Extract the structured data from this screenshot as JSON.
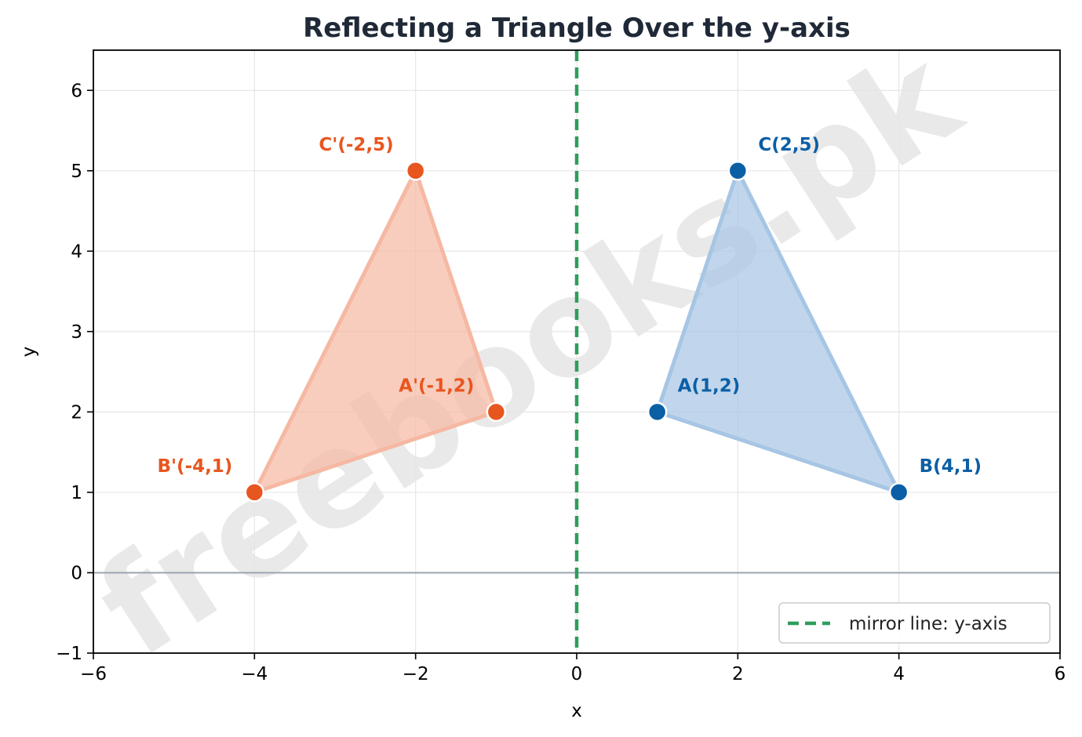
{
  "chart_data": {
    "type": "scatter",
    "title": "Reflecting a Triangle Over the y-axis",
    "xlabel": "x",
    "ylabel": "y",
    "xlim": [
      -6,
      6
    ],
    "ylim": [
      -1,
      6.5
    ],
    "xticks": [
      -6,
      -4,
      -2,
      0,
      2,
      4,
      6
    ],
    "yticks": [
      -1,
      0,
      1,
      2,
      3,
      4,
      5,
      6
    ],
    "grid": true,
    "legend_position": "bottom-right",
    "series": [
      {
        "name": "",
        "color": "#0b5fa5",
        "fill": "#a7c5e4",
        "points": [
          {
            "label": "A(1,2)",
            "x": 1,
            "y": 2
          },
          {
            "label": "B(4,1)",
            "x": 4,
            "y": 1
          },
          {
            "label": "C(2,5)",
            "x": 2,
            "y": 5
          }
        ]
      },
      {
        "name": "",
        "color": "#e8561f",
        "fill": "#f6b8a2",
        "points": [
          {
            "label": "A'(-1,2)",
            "x": -1,
            "y": 2
          },
          {
            "label": "B'(-4,1)",
            "x": -4,
            "y": 1
          },
          {
            "label": "C'(-2,5)",
            "x": -2,
            "y": 5
          }
        ]
      }
    ],
    "mirror_line": {
      "name": "mirror line: y-axis",
      "x": 0,
      "color": "#2e9e5b"
    },
    "watermark": "freebooks.pk"
  }
}
